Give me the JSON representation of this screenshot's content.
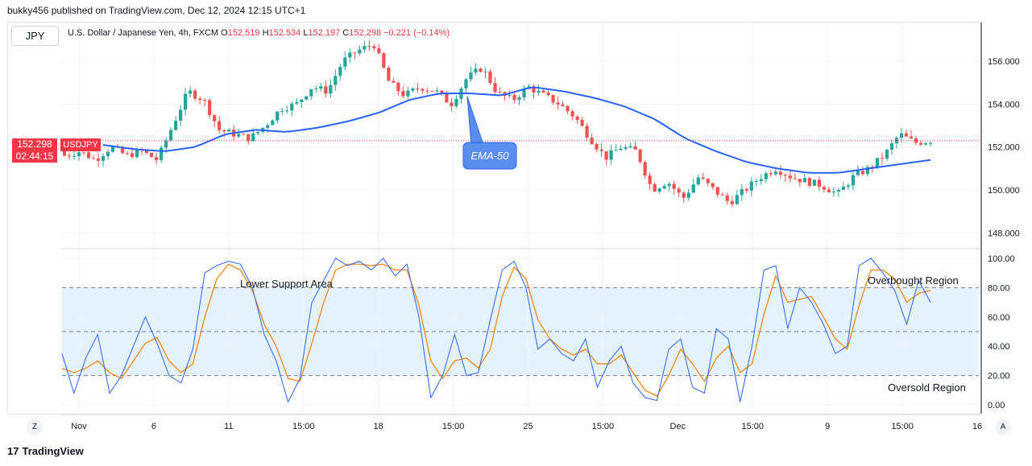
{
  "publisher": "bukky456 published on TradingView.com, Dec 12, 2024 12:15 UTC+1",
  "symbol_button": "JPY",
  "header": {
    "title": "U.S. Dollar / Japanese Yen, 4h, FXCM",
    "o_label": "O",
    "o": "152.519",
    "h_label": "H",
    "h": "152.534",
    "l_label": "L",
    "l": "152.197",
    "c_label": "C",
    "c": "152.298",
    "change": "−0.221 (−0.14%)"
  },
  "price_tag": {
    "price": "152.298",
    "countdown": "02:44:15",
    "symbol": "USDJPY"
  },
  "footer": {
    "brand": "TradingView",
    "logo": "17"
  },
  "buttons": {
    "z": "Z",
    "a": "A"
  },
  "colors": {
    "up": "#26a69a",
    "down": "#ef5350",
    "ema": "#2962ff",
    "k_line": "#2962ff",
    "d_line": "#f57c00",
    "band": "#e3f2fd"
  },
  "chart_data": [
    {
      "type": "candlestick",
      "ylim": [
        147.3,
        157.8
      ],
      "y_ticks": [
        "156.000",
        "154.000",
        "152.000",
        "150.000",
        "148.000"
      ],
      "y_tick_values": [
        156,
        154,
        152,
        150,
        148
      ],
      "x_ticks": [
        "Nov",
        "6",
        "11",
        "15:00",
        "18",
        "15:00",
        "25",
        "15:00",
        "Dec",
        "15:00",
        "9",
        "15:00",
        "16"
      ],
      "close_anchors": [
        151.6,
        151.8,
        151.4,
        152.0,
        151.6,
        151.8,
        151.4,
        153.0,
        154.6,
        154.2,
        152.8,
        152.6,
        152.4,
        153.0,
        153.8,
        154.0,
        154.8,
        154.6,
        156.0,
        156.5,
        156.8,
        155.0,
        154.4,
        154.8,
        154.6,
        154.0,
        155.2,
        155.7,
        154.5,
        154.2,
        154.8,
        154.4,
        154.0,
        153.4,
        152.4,
        151.5,
        152.0,
        151.8,
        150.0,
        150.4,
        149.6,
        150.6,
        150.0,
        149.4,
        150.0,
        150.6,
        151.0,
        150.6,
        150.4,
        150.2,
        149.8,
        150.6,
        151.0,
        151.6,
        152.6,
        152.2,
        152.3
      ],
      "ema50_anchors": [
        152.1,
        151.9,
        151.8,
        152.0,
        152.6,
        152.8,
        152.7,
        152.9,
        153.2,
        153.6,
        154.2,
        154.5,
        154.5,
        154.4,
        154.8,
        154.6,
        154.3,
        153.9,
        153.3,
        152.4,
        151.8,
        151.3,
        151.0,
        150.8,
        150.8,
        151.0,
        151.2,
        151.4
      ],
      "annotations": [
        "EMA-50"
      ]
    },
    {
      "type": "line",
      "ylim": [
        -6,
        106
      ],
      "y_ticks": [
        "100.00",
        "80.00",
        "60.00",
        "40.00",
        "20.00",
        "0.00"
      ],
      "y_tick_values": [
        100,
        80,
        60,
        40,
        20,
        0
      ],
      "overbought": 80,
      "middle": 50,
      "oversold": 20,
      "series": [
        {
          "values": [
            35,
            8,
            32,
            48,
            8,
            20,
            40,
            60,
            42,
            20,
            15,
            38,
            90,
            95,
            98,
            96,
            80,
            48,
            30,
            2,
            18,
            70,
            85,
            100,
            95,
            98,
            92,
            100,
            88,
            96,
            60,
            5,
            20,
            48,
            20,
            22,
            58,
            92,
            98,
            80,
            38,
            45,
            35,
            30,
            45,
            12,
            30,
            40,
            15,
            5,
            3,
            38,
            45,
            12,
            8,
            52,
            45,
            2,
            40,
            92,
            95,
            52,
            80,
            70,
            55,
            35,
            40,
            95,
            100,
            90,
            78,
            55,
            85,
            70
          ]
        },
        {
          "values": [
            25,
            22,
            25,
            30,
            22,
            18,
            30,
            42,
            46,
            30,
            22,
            28,
            60,
            86,
            96,
            92,
            78,
            55,
            40,
            18,
            16,
            42,
            70,
            92,
            96,
            96,
            95,
            96,
            92,
            92,
            68,
            30,
            18,
            30,
            32,
            25,
            38,
            74,
            94,
            86,
            58,
            45,
            38,
            34,
            38,
            28,
            28,
            34,
            22,
            10,
            6,
            20,
            38,
            28,
            16,
            32,
            40,
            22,
            28,
            62,
            88,
            70,
            72,
            74,
            60,
            45,
            38,
            68,
            92,
            92,
            86,
            70,
            76,
            78
          ]
        }
      ],
      "annotations": [
        "Lower Support Area",
        "Overbought Region",
        "Oversold Region"
      ]
    }
  ]
}
